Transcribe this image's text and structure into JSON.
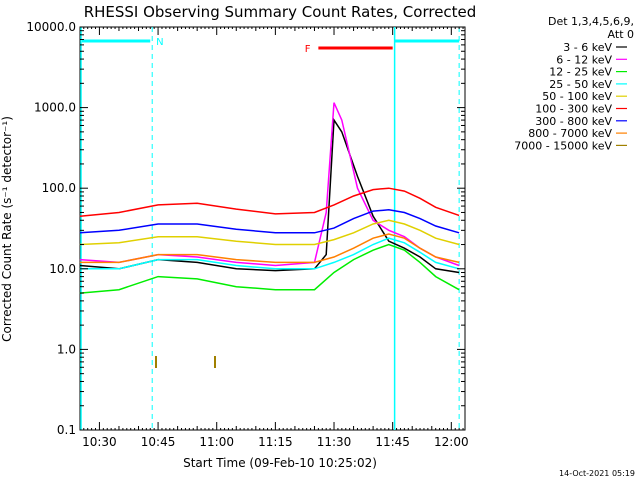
{
  "chart_data": {
    "type": "line",
    "title": "RHESSI Observing Summary Count Rates, Corrected",
    "xlabel": "Start Time (09-Feb-10 10:25:02)",
    "ylabel": "Corrected Count Rate (s⁻¹ detector⁻¹)",
    "yscale": "log",
    "ylim": [
      0.1,
      10000
    ],
    "xlim": [
      "10:25:02",
      "12:03:30"
    ],
    "y_ticks": [
      "0.1",
      "1.0",
      "10.0",
      "100.0",
      "1000.0",
      "10000.0"
    ],
    "x_ticks": [
      "10:30",
      "10:45",
      "11:00",
      "11:15",
      "11:30",
      "11:45",
      "12:00"
    ],
    "grid": false,
    "legend_placement": "right",
    "legend_header": [
      "Det 1,3,4,5,6,9,",
      "Att 0"
    ],
    "footer_date": "14-Oct-2021 05:19",
    "colors": {
      "axes": "#000000",
      "markers": "#00ffff",
      "flare": "#ff0000",
      "ticks_marks": "#a08000"
    },
    "series": [
      {
        "name": "3 - 6 keV",
        "color": "#000000",
        "x": [
          "10:25",
          "10:35",
          "10:45",
          "10:55",
          "11:05",
          "11:15",
          "11:25",
          "11:28",
          "11:30",
          "11:32",
          "11:36",
          "11:40",
          "11:44",
          "11:48",
          "11:52",
          "11:56",
          "12:02"
        ],
        "y": [
          11,
          10,
          13,
          12,
          10,
          9.5,
          10,
          15,
          700,
          500,
          140,
          45,
          22,
          18,
          14,
          10,
          9
        ]
      },
      {
        "name": "6 - 12 keV",
        "color": "#ff00ff",
        "x": [
          "10:25",
          "10:35",
          "10:45",
          "10:55",
          "11:05",
          "11:15",
          "11:25",
          "11:28",
          "11:30",
          "11:32",
          "11:36",
          "11:40",
          "11:44",
          "11:48",
          "11:52",
          "11:56",
          "12:02"
        ],
        "y": [
          13,
          12,
          15,
          14,
          12,
          11,
          12,
          50,
          1150,
          700,
          100,
          40,
          30,
          25,
          18,
          14,
          11
        ]
      },
      {
        "name": "12 - 25 keV",
        "color": "#00ee00",
        "x": [
          "10:25",
          "10:35",
          "10:45",
          "10:55",
          "11:05",
          "11:15",
          "11:25",
          "11:30",
          "11:35",
          "11:40",
          "11:44",
          "11:48",
          "11:52",
          "11:56",
          "12:02"
        ],
        "y": [
          5,
          5.5,
          8,
          7.5,
          6,
          5.5,
          5.5,
          9,
          13,
          17,
          20,
          17,
          12,
          8,
          5.5
        ]
      },
      {
        "name": "25 - 50 keV",
        "color": "#00ffff",
        "x": [
          "10:25",
          "10:35",
          "10:45",
          "10:55",
          "11:05",
          "11:15",
          "11:25",
          "11:30",
          "11:35",
          "11:40",
          "11:44",
          "11:48",
          "11:52",
          "11:56",
          "12:02"
        ],
        "y": [
          10,
          10,
          13,
          13,
          11,
          10,
          10,
          12,
          15,
          20,
          24,
          21,
          16,
          12,
          10
        ]
      },
      {
        "name": "50 - 100 keV",
        "color": "#e0d000",
        "x": [
          "10:25",
          "10:35",
          "10:45",
          "10:55",
          "11:05",
          "11:15",
          "11:25",
          "11:30",
          "11:35",
          "11:40",
          "11:44",
          "11:48",
          "11:52",
          "11:56",
          "12:02"
        ],
        "y": [
          20,
          21,
          25,
          25,
          22,
          20,
          20,
          23,
          28,
          36,
          40,
          36,
          30,
          24,
          20
        ]
      },
      {
        "name": "100 - 300 keV",
        "color": "#ff0000",
        "x": [
          "10:25",
          "10:35",
          "10:45",
          "10:55",
          "11:05",
          "11:15",
          "11:25",
          "11:30",
          "11:35",
          "11:40",
          "11:44",
          "11:48",
          "11:52",
          "11:56",
          "12:02"
        ],
        "y": [
          45,
          50,
          62,
          65,
          55,
          48,
          50,
          62,
          80,
          96,
          100,
          92,
          75,
          58,
          46
        ]
      },
      {
        "name": "300 - 800 keV",
        "color": "#0000ff",
        "x": [
          "10:25",
          "10:35",
          "10:45",
          "10:55",
          "11:05",
          "11:15",
          "11:25",
          "11:30",
          "11:35",
          "11:40",
          "11:44",
          "11:48",
          "11:52",
          "11:56",
          "12:02"
        ],
        "y": [
          28,
          30,
          36,
          36,
          31,
          28,
          28,
          32,
          42,
          52,
          54,
          50,
          42,
          34,
          28
        ]
      },
      {
        "name": "800 - 7000 keV",
        "color": "#ff8000",
        "x": [
          "10:25",
          "10:35",
          "10:45",
          "10:55",
          "11:05",
          "11:15",
          "11:25",
          "11:30",
          "11:35",
          "11:40",
          "11:44",
          "11:48",
          "11:52",
          "11:56",
          "12:02"
        ],
        "y": [
          12,
          12,
          15,
          15,
          13,
          12,
          12,
          14,
          18,
          24,
          27,
          24,
          18,
          14,
          12
        ]
      },
      {
        "name": "7000 - 15000 keV",
        "color": "#a08000",
        "x": [],
        "y": []
      }
    ],
    "annotations": [
      {
        "text": "N",
        "color": "#00ffff"
      },
      {
        "text": "F",
        "color": "#ff0000"
      }
    ]
  }
}
